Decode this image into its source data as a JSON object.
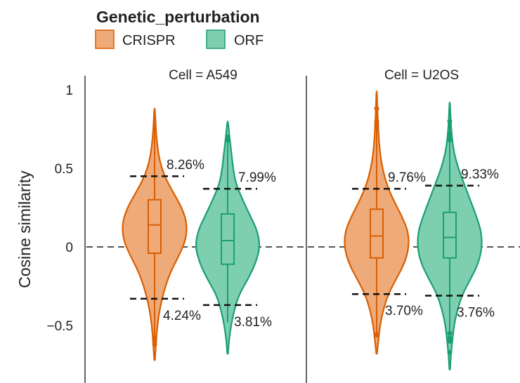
{
  "chart_data": {
    "type": "violin",
    "legend": {
      "title": "Genetic_perturbation",
      "position": "top-left",
      "items": [
        {
          "label": "CRISPR",
          "fill": "#eeaa79",
          "stroke": "#d95f02"
        },
        {
          "label": "ORF",
          "fill": "#7ecfb0",
          "stroke": "#1b9e77"
        }
      ]
    },
    "ylabel": "Cosine similarity",
    "ylim": [
      -0.85,
      1.05
    ],
    "yticks": [
      {
        "value": 1,
        "label": "1"
      },
      {
        "value": 0.5,
        "label": "0.5"
      },
      {
        "value": 0,
        "label": "0"
      },
      {
        "value": -0.5,
        "label": "−0.5"
      }
    ],
    "reference_line": 0,
    "panels": [
      {
        "title": "Cell = A549",
        "groups": [
          {
            "name": "CRISPR",
            "fill": "#eeaa79",
            "stroke": "#d95f02",
            "min": -0.72,
            "max": 0.88,
            "q1": -0.04,
            "median": 0.14,
            "q3": 0.3,
            "whisker_low": -0.6,
            "whisker_high": 0.88,
            "outliers": [
              -0.58,
              -0.6,
              -0.62
            ],
            "density": [
              [
                -0.72,
                0.004
              ],
              [
                -0.65,
                0.012
              ],
              [
                -0.55,
                0.025
              ],
              [
                -0.45,
                0.045
              ],
              [
                -0.35,
                0.08
              ],
              [
                -0.25,
                0.13
              ],
              [
                -0.15,
                0.2
              ],
              [
                -0.05,
                0.3
              ],
              [
                0.05,
                0.38
              ],
              [
                0.15,
                0.39
              ],
              [
                0.25,
                0.33
              ],
              [
                0.35,
                0.22
              ],
              [
                0.45,
                0.12
              ],
              [
                0.55,
                0.06
              ],
              [
                0.65,
                0.032
              ],
              [
                0.75,
                0.015
              ],
              [
                0.88,
                0.004
              ]
            ],
            "upper_threshold": 0.45,
            "upper_pct": "8.26%",
            "lower_threshold": -0.33,
            "lower_pct": "4.24%"
          },
          {
            "name": "ORF",
            "fill": "#7ecfb0",
            "stroke": "#1b9e77",
            "min": -0.68,
            "max": 0.8,
            "q1": -0.11,
            "median": 0.04,
            "q3": 0.21,
            "whisker_low": -0.48,
            "whisker_high": 0.7,
            "outliers": [
              0.68,
              0.7
            ],
            "density": [
              [
                -0.68,
                0.004
              ],
              [
                -0.6,
                0.015
              ],
              [
                -0.5,
                0.04
              ],
              [
                -0.4,
                0.08
              ],
              [
                -0.3,
                0.14
              ],
              [
                -0.2,
                0.25
              ],
              [
                -0.1,
                0.34
              ],
              [
                0,
                0.39
              ],
              [
                0.1,
                0.36
              ],
              [
                0.2,
                0.27
              ],
              [
                0.3,
                0.18
              ],
              [
                0.4,
                0.1
              ],
              [
                0.5,
                0.065
              ],
              [
                0.6,
                0.045
              ],
              [
                0.7,
                0.022
              ],
              [
                0.8,
                0.004
              ]
            ],
            "upper_threshold": 0.37,
            "upper_pct": "7.99%",
            "lower_threshold": -0.37,
            "lower_pct": "3.81%"
          }
        ]
      },
      {
        "title": "Cell = U2OS",
        "groups": [
          {
            "name": "CRISPR",
            "fill": "#eeaa79",
            "stroke": "#d95f02",
            "min": -0.68,
            "max": 0.99,
            "q1": -0.07,
            "median": 0.07,
            "q3": 0.24,
            "whisker_low": -0.56,
            "whisker_high": 0.9,
            "outliers": [
              0.76,
              0.78,
              0.8,
              0.88,
              -0.56
            ],
            "density": [
              [
                -0.68,
                0.004
              ],
              [
                -0.6,
                0.02
              ],
              [
                -0.5,
                0.04
              ],
              [
                -0.4,
                0.08
              ],
              [
                -0.3,
                0.14
              ],
              [
                -0.2,
                0.24
              ],
              [
                -0.1,
                0.34
              ],
              [
                0,
                0.39
              ],
              [
                0.1,
                0.38
              ],
              [
                0.2,
                0.3
              ],
              [
                0.3,
                0.2
              ],
              [
                0.4,
                0.12
              ],
              [
                0.5,
                0.07
              ],
              [
                0.6,
                0.04
              ],
              [
                0.7,
                0.025
              ],
              [
                0.8,
                0.015
              ],
              [
                0.9,
                0.008
              ],
              [
                0.99,
                0.003
              ]
            ],
            "upper_threshold": 0.37,
            "upper_pct": "9.76%",
            "lower_threshold": -0.3,
            "lower_pct": "3.70%"
          },
          {
            "name": "ORF",
            "fill": "#7ecfb0",
            "stroke": "#1b9e77",
            "min": -0.78,
            "max": 0.92,
            "q1": -0.07,
            "median": 0.06,
            "q3": 0.22,
            "whisker_low": -0.55,
            "whisker_high": 0.8,
            "outliers": [
              0.8,
              0.72,
              0.7,
              0.68,
              -0.55,
              -0.58,
              -0.6,
              -0.67
            ],
            "density": [
              [
                -0.78,
                0.004
              ],
              [
                -0.7,
                0.012
              ],
              [
                -0.6,
                0.03
              ],
              [
                -0.5,
                0.05
              ],
              [
                -0.4,
                0.09
              ],
              [
                -0.3,
                0.15
              ],
              [
                -0.2,
                0.25
              ],
              [
                -0.1,
                0.34
              ],
              [
                0,
                0.38
              ],
              [
                0.1,
                0.37
              ],
              [
                0.2,
                0.31
              ],
              [
                0.3,
                0.24
              ],
              [
                0.4,
                0.17
              ],
              [
                0.5,
                0.1
              ],
              [
                0.6,
                0.05
              ],
              [
                0.7,
                0.025
              ],
              [
                0.8,
                0.012
              ],
              [
                0.92,
                0.003
              ]
            ],
            "upper_threshold": 0.39,
            "upper_pct": "9.33%",
            "lower_threshold": -0.31,
            "lower_pct": "3.76%"
          }
        ]
      }
    ]
  }
}
